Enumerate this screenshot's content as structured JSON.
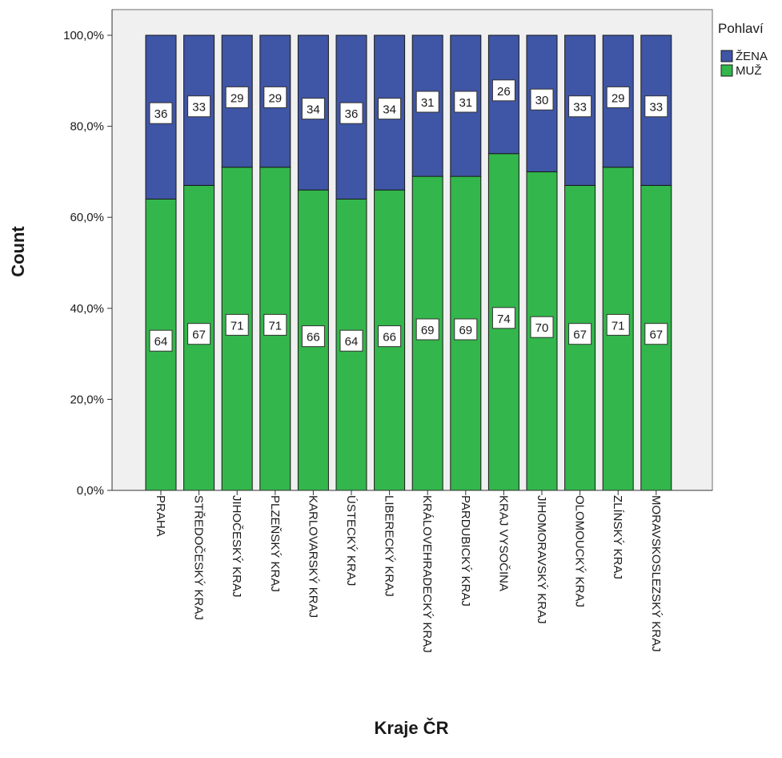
{
  "chart_data": {
    "type": "bar",
    "stacked": true,
    "xlabel": "Kraje ČR",
    "ylabel": "Count",
    "ylim": [
      0,
      100
    ],
    "yticks": [
      "0,0%",
      "20,0%",
      "40,0%",
      "60,0%",
      "80,0%",
      "100,0%"
    ],
    "ytick_values": [
      0,
      20,
      40,
      60,
      80,
      100
    ],
    "categories": [
      "PRAHA",
      "STŘEDOČESKÝ KRAJ",
      "JIHOČESKÝ KRAJ",
      "PLZEŇSKÝ KRAJ",
      "KARLOVARSKÝ KRAJ",
      "ÚSTECKÝ KRAJ",
      "LIBERECKÝ KRAJ",
      "KRÁLOVEHRADECKÝ KRAJ",
      "PARDUBICKÝ KRAJ",
      "KRAJ VYSOČINA",
      "JIHOMORAVSKÝ KRAJ",
      "OLOMOUCKÝ KRAJ",
      "ZLÍNSKÝ KRAJ",
      "MORAVSKOSLEZSKÝ KRAJ"
    ],
    "series": [
      {
        "name": "MUŽ",
        "color": "#33b64b",
        "values": [
          64,
          67,
          71,
          71,
          66,
          64,
          66,
          69,
          69,
          74,
          70,
          67,
          71,
          67
        ]
      },
      {
        "name": "ŽENA",
        "color": "#3f55a5",
        "values": [
          36,
          33,
          29,
          29,
          34,
          36,
          34,
          31,
          31,
          26,
          30,
          33,
          29,
          33
        ]
      }
    ],
    "legend": {
      "title": "Pohlaví",
      "placement": "top-right",
      "items": [
        "ŽENA",
        "MUŽ"
      ]
    },
    "grid": false,
    "plot_background": "#f0f0f0"
  }
}
